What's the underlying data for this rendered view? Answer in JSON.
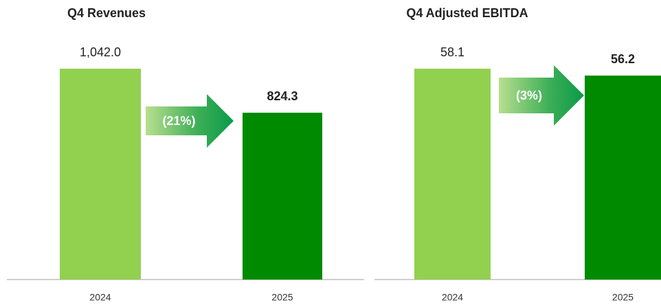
{
  "chart_data": [
    {
      "type": "bar",
      "title": "Q4 Revenues",
      "categories": [
        "2024",
        "2025"
      ],
      "values": [
        1042.0,
        824.3
      ],
      "value_labels": [
        "1,042.0",
        "824.3"
      ],
      "colors": [
        "#92d050",
        "#008a00"
      ],
      "annotation": "(21%)"
    },
    {
      "type": "bar",
      "title": "Q4 Adjusted EBITDA",
      "categories": [
        "2024",
        "2025"
      ],
      "values": [
        58.1,
        56.2
      ],
      "value_labels": [
        "58.1",
        "56.2"
      ],
      "colors": [
        "#92d050",
        "#008a00"
      ],
      "annotation": "(3%)"
    }
  ]
}
